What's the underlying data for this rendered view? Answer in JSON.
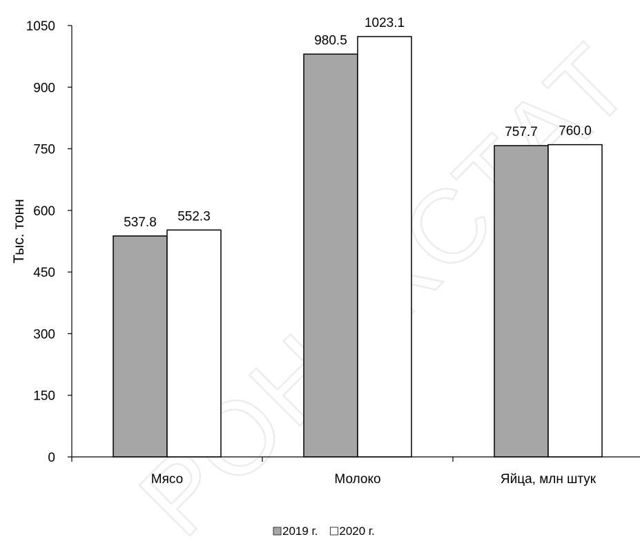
{
  "watermark": "РОНЕКСТАТ",
  "chart_data": {
    "type": "bar",
    "ylabel": "Тыс. тонн",
    "xlabel": "",
    "ylim": [
      0,
      1050
    ],
    "yticks": [
      0,
      150,
      300,
      450,
      600,
      750,
      900,
      1050
    ],
    "categories": [
      "Мясо",
      "Молоко",
      "Яйца, млн штук"
    ],
    "series": [
      {
        "name": "2019 г.",
        "values": [
          537.8,
          980.5,
          757.7
        ],
        "labels": [
          "537.8",
          "980.5",
          "757.7"
        ],
        "color": "#a6a6a6"
      },
      {
        "name": "2020 г.",
        "values": [
          552.3,
          1023.1,
          760.0
        ],
        "labels": [
          "552.3",
          "1023.1",
          "760.0"
        ],
        "color": "#ffffff"
      }
    ],
    "grid": false,
    "legend_position": "bottom"
  }
}
